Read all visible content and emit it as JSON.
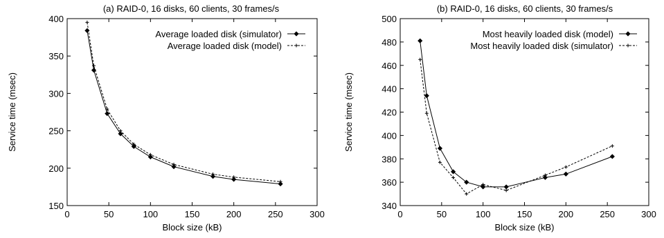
{
  "chart_data": [
    {
      "type": "line",
      "title": "(a) RAID-0, 16 disks, 60 clients, 30 frames/s",
      "xlabel": "Block size (kB)",
      "ylabel": "Service time (msec)",
      "xlim": [
        0,
        300
      ],
      "ylim": [
        150,
        400
      ],
      "xticks": [
        0,
        50,
        100,
        150,
        200,
        250,
        300
      ],
      "yticks": [
        150,
        200,
        250,
        300,
        350,
        400
      ],
      "grid": false,
      "legend_position": "top-right",
      "series": [
        {
          "name": "Average loaded disk (simulator)",
          "style": "solid",
          "marker": "diamond",
          "x": [
            24,
            32,
            48,
            64,
            80,
            100,
            128,
            175,
            200,
            256
          ],
          "y": [
            384,
            331,
            273,
            246,
            229,
            215,
            202,
            189,
            185,
            179
          ]
        },
        {
          "name": "Average loaded disk (model)",
          "style": "dashed",
          "marker": "plus",
          "x": [
            24,
            32,
            48,
            64,
            80,
            100,
            128,
            175,
            200,
            256
          ],
          "y": [
            395,
            337,
            279,
            250,
            232,
            218,
            205,
            192,
            188,
            182
          ]
        }
      ]
    },
    {
      "type": "line",
      "title": "(b) RAID-0, 16 disks, 60 clients, 30 frames/s",
      "xlabel": "Block size (kB)",
      "ylabel": "Service time (msec)",
      "xlim": [
        0,
        300
      ],
      "ylim": [
        340,
        500
      ],
      "xticks": [
        0,
        50,
        100,
        150,
        200,
        250,
        300
      ],
      "yticks": [
        340,
        360,
        380,
        400,
        420,
        440,
        460,
        480,
        500
      ],
      "grid": false,
      "legend_position": "top-right",
      "series": [
        {
          "name": "Most heavily loaded disk (model)",
          "style": "solid",
          "marker": "diamond",
          "x": [
            24,
            32,
            48,
            64,
            80,
            100,
            128,
            175,
            200,
            256
          ],
          "y": [
            481,
            434,
            389,
            369,
            360,
            356,
            356,
            364,
            367,
            382
          ]
        },
        {
          "name": "Most heavily loaded disk (simulator)",
          "style": "dashed",
          "marker": "plus",
          "x": [
            24,
            32,
            48,
            64,
            80,
            100,
            128,
            175,
            200,
            256
          ],
          "y": [
            465,
            419,
            377,
            364,
            350,
            358,
            353,
            366,
            373,
            391
          ]
        }
      ]
    }
  ]
}
